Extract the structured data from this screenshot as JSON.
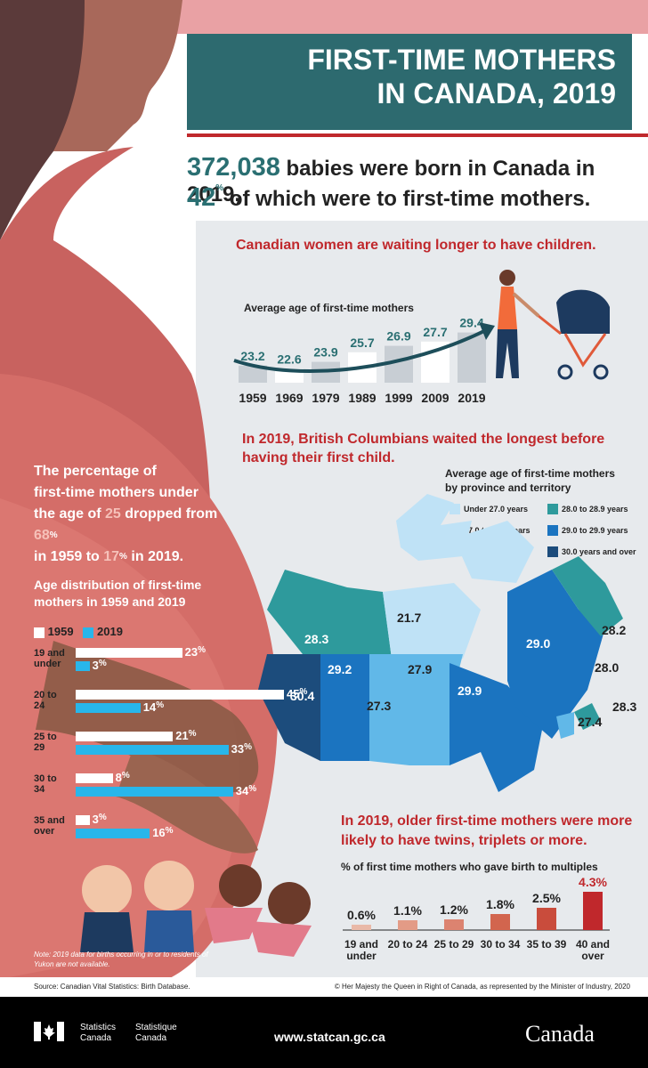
{
  "title": {
    "line1": "FIRST-TIME MOTHERS",
    "line2": "IN CANADA, 2019"
  },
  "headline": {
    "births": "372,038",
    "births_text": "babies were born in Canada in 2019,",
    "pct": "42",
    "pct_sup": "%",
    "pct_text": "of which were to first-time mothers."
  },
  "section1": {
    "heading": "Canadian women are waiting longer to have children.",
    "chart_title": "Average age of first-time mothers"
  },
  "section2": {
    "heading_year": "In 2019",
    "heading_rest": ", British Columbians waited the longest before having their first child.",
    "map_title_1": "Average age of first-time mothers",
    "map_title_2": "by province and territory",
    "legend": [
      {
        "label": "Under 27.0 years",
        "color": "#bfe2f6"
      },
      {
        "label": "27.0 to 27.9 years",
        "color": "#61b8e8"
      },
      {
        "label": "28.0 to 28.9 years",
        "color": "#2e9a9c"
      },
      {
        "label": "29.0 to 29.9 years",
        "color": "#1b74c0"
      },
      {
        "label": "30.0 years and over",
        "color": "#1c4c7c"
      }
    ],
    "regions": [
      {
        "name": "Yukon",
        "value": "28.3"
      },
      {
        "name": "Northwest Territories",
        "value": "21.7"
      },
      {
        "name": "Nunavut",
        "value": ""
      },
      {
        "name": "British Columbia",
        "value": "30.4"
      },
      {
        "name": "Alberta",
        "value": "29.2"
      },
      {
        "name": "Saskatchewan",
        "value": "27.3"
      },
      {
        "name": "Manitoba",
        "value": "27.9"
      },
      {
        "name": "Ontario",
        "value": "29.9"
      },
      {
        "name": "Quebec",
        "value": "29.0"
      },
      {
        "name": "Newfoundland and Labrador",
        "value": "28.2"
      },
      {
        "name": "Prince Edward Island",
        "value": "28.0"
      },
      {
        "name": "Nova Scotia",
        "value": "28.3"
      },
      {
        "name": "New Brunswick",
        "value": "27.4"
      }
    ]
  },
  "section3": {
    "text_1": "The percentage of",
    "text_2": "first-time mothers under",
    "text_3a": "the age of ",
    "age": "25",
    "text_3b": " dropped from ",
    "pct1959": "68",
    "text_4a": "in 1959 to ",
    "pct2019": "17",
    "text_4b": " in 2019.",
    "pct_sup": "%",
    "chart_title_1": "Age distribution of first-time",
    "chart_title_2": "mothers in 1959 and 2019",
    "legend_1959": "1959",
    "legend_2019": "2019",
    "row_labels": [
      {
        "a": "19",
        "b": "and",
        "c": "under"
      },
      {
        "a": "20",
        "b": "to",
        "c": "24"
      },
      {
        "a": "25",
        "b": "to",
        "c": "29"
      },
      {
        "a": "30",
        "b": "to",
        "c": "34"
      },
      {
        "a": "35",
        "b": "and",
        "c": "over"
      }
    ],
    "note": "Note: 2019 data for births occurring in or to residents of Yukon are not available."
  },
  "section4": {
    "heading_year": "In 2019",
    "heading_rest_1": ", older first-time mothers were more",
    "heading_rest_2": "likely to have twins, triplets or more.",
    "chart_title": "% of first time mothers who gave birth to multiples",
    "labels": [
      {
        "a": "19",
        "b": "and",
        "c": "under"
      },
      {
        "a": "20",
        "b": "to",
        "c": "24"
      },
      {
        "a": "25",
        "b": "to",
        "c": "29"
      },
      {
        "a": "30",
        "b": "to",
        "c": "34"
      },
      {
        "a": "35",
        "b": "to",
        "c": "39"
      },
      {
        "a": "40",
        "b": "and",
        "c": "over"
      }
    ]
  },
  "source": "Source: Canadian Vital Statistics: Birth Database.",
  "copyright": "© Her Majesty the Queen in Right of Canada, as represented by the Minister of Industry, 2020",
  "footer": {
    "sc_en_1": "Statistics",
    "sc_en_2": "Canada",
    "sc_fr_1": "Statistique",
    "sc_fr_2": "Canada",
    "url": "www.statcan.gc.ca",
    "wordmark": "Canada"
  },
  "colors": {
    "teal": "#2d6a6f",
    "red": "#c0282c",
    "blue2019": "#28b6ea",
    "multiples": "#c0282c"
  },
  "chart_data": [
    {
      "type": "bar",
      "title": "Average age of first-time mothers",
      "categories": [
        "1959",
        "1969",
        "1979",
        "1989",
        "1999",
        "2009",
        "2019"
      ],
      "values": [
        23.2,
        22.6,
        23.9,
        25.7,
        26.9,
        27.7,
        29.4
      ],
      "value_labels": [
        "23.2",
        "22.6",
        "23.9",
        "25.7",
        "26.9",
        "27.7",
        "29.4"
      ]
    },
    {
      "type": "bar",
      "orientation": "horizontal",
      "title": "Age distribution of first-time mothers in 1959 and 2019",
      "categories": [
        "19 and under",
        "20 to 24",
        "25 to 29",
        "30 to 34",
        "35 and over"
      ],
      "series": [
        {
          "name": "1959",
          "values": [
            23,
            45,
            21,
            8,
            3
          ],
          "color": "#ffffff"
        },
        {
          "name": "2019",
          "values": [
            3,
            14,
            33,
            34,
            16
          ],
          "color": "#28b6ea"
        }
      ],
      "unit": "%"
    },
    {
      "type": "bar",
      "title": "% of first time mothers who gave birth to multiples",
      "categories": [
        "19 and under",
        "20 to 24",
        "25 to 29",
        "30 to 34",
        "35 to 39",
        "40 and over"
      ],
      "values": [
        0.6,
        1.1,
        1.2,
        1.8,
        2.5,
        4.3
      ],
      "value_labels": [
        "0.6",
        "1.1",
        "1.2",
        "1.8",
        "2.5",
        "4.3"
      ],
      "unit": "%"
    }
  ]
}
